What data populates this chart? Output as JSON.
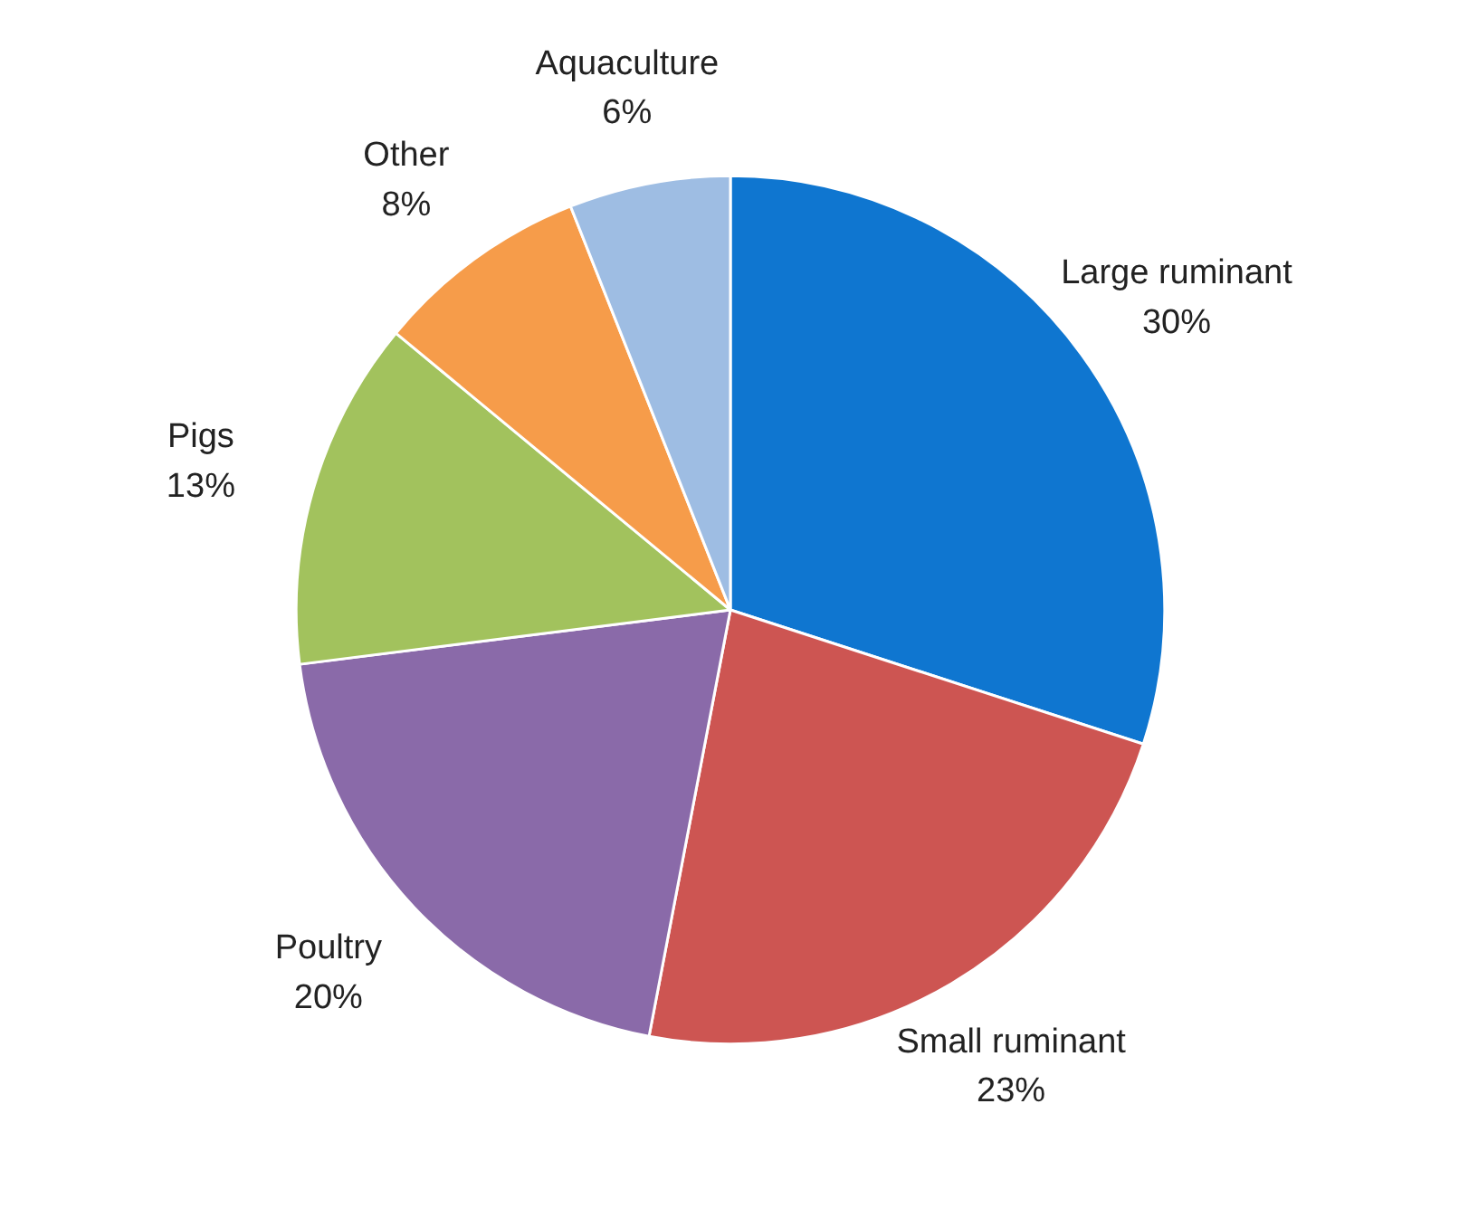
{
  "chart_data": {
    "type": "pie",
    "categories": [
      "Large ruminant",
      "Small ruminant",
      "Poultry",
      "Pigs",
      "Other",
      "Aquaculture"
    ],
    "values": [
      30,
      23,
      20,
      13,
      8,
      6
    ],
    "value_labels": [
      "30%",
      "23%",
      "20%",
      "13%",
      "8%",
      "6%"
    ],
    "colors": [
      "#0f76d0",
      "#cd5552",
      "#8a6aa9",
      "#a2c25d",
      "#f69c4a",
      "#9ebde3"
    ]
  }
}
